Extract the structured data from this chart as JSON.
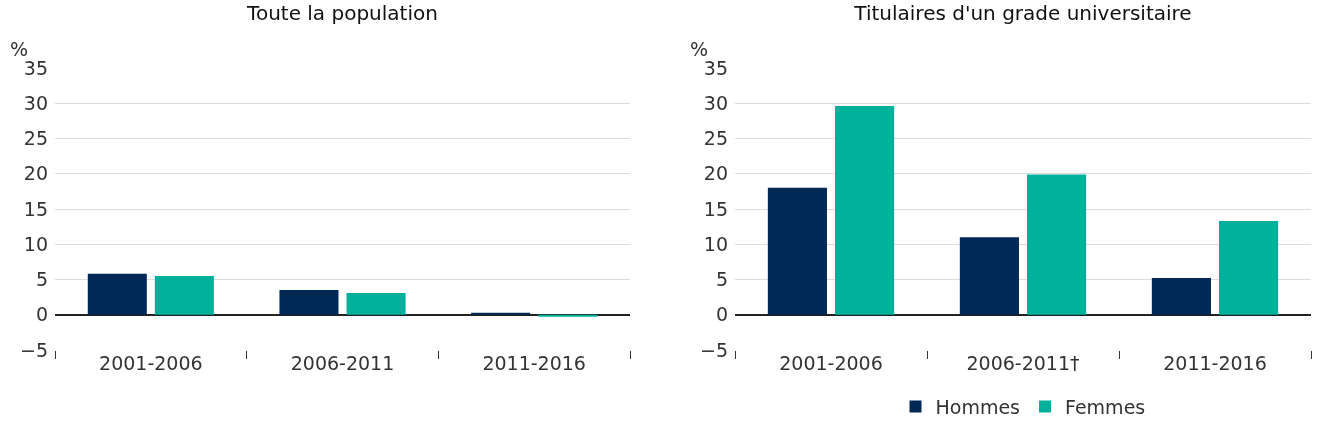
{
  "chart_data": [
    {
      "type": "bar",
      "title": "Toute la population",
      "ylabel": "%",
      "categories": [
        "2001-2006",
        "2006-2011",
        "2011-2016"
      ],
      "series": [
        {
          "color": "#002855",
          "values": [
            5.8,
            3.5,
            0.3
          ]
        },
        {
          "color": "#00b09b",
          "values": [
            5.5,
            3.1,
            -0.3
          ]
        }
      ],
      "ylim": [
        -5,
        35
      ],
      "yticks": [
        {
          "value": -5,
          "label": "−5"
        },
        0,
        5,
        10,
        15,
        20,
        25,
        30,
        35
      ],
      "grid": "y",
      "legend": false
    },
    {
      "type": "bar",
      "title": "Titulaires d'un grade universitaire",
      "ylabel": "%",
      "categories": [
        "2001-2006",
        "2006-2011†",
        "2011-2016"
      ],
      "series": [
        {
          "name": "Hommes",
          "color": "#002855",
          "values": [
            18.0,
            11.0,
            5.2
          ]
        },
        {
          "name": "Femmes",
          "color": "#00b09b",
          "values": [
            29.6,
            19.9,
            13.3
          ]
        }
      ],
      "ylim": [
        -5,
        35
      ],
      "yticks": [
        {
          "value": -5,
          "label": "−5"
        },
        0,
        5,
        10,
        15,
        20,
        25,
        30,
        35
      ],
      "grid": "y",
      "legend": "bottom"
    }
  ]
}
